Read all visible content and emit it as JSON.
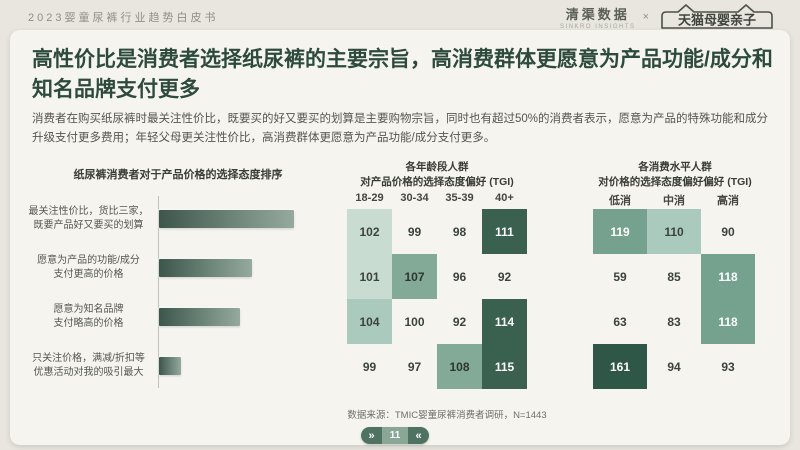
{
  "header": {
    "doc_title": "2023婴童尿裤行业趋势白皮书",
    "brand_left": "清渠数据",
    "brand_left_sub": "SINKRO INSIGHTS",
    "brand_sep": "×",
    "brand_right": "天猫母婴亲子"
  },
  "slide": {
    "title_line1": "高性价比是消费者选择纸尿裤的主要宗旨，高消费群体更愿意为产品功能/成分和",
    "title_line2": "知名品牌支付更多",
    "body": "消费者在购买纸尿裤时最关注性价比，既要买的好又要买的划算是主要购物宗旨，同时也有超过50%的消费者表示，愿意为产品的特殊功能和成分升级支付更多费用；年轻父母更关注性价比，高消费群体更愿意为产品功能/成分支付更多。",
    "source": "数据来源：TMIC婴童尿裤消费者调研，N=1443",
    "page_number": "11",
    "pager_left_icon": "»",
    "pager_right_icon": "«"
  },
  "colors": {
    "page_bg": "#e9e6df",
    "card_bg": "#f5f4ef",
    "accent_dark_green": "#2d4b3d",
    "bar_gradient_start": "#3d564c",
    "bar_gradient_end": "#95aa9d",
    "heat_levels": [
      "transparent",
      "#c9dcd2",
      "#a9cabc",
      "#82aa97",
      "#74a28e",
      "#3a614f",
      "#2e5747"
    ],
    "pager_cap_bg": "#4e7363",
    "pager_center_bg": "#8aa796"
  },
  "chart_data": [
    {
      "type": "bar",
      "orientation": "horizontal",
      "title": "纸尿裤消费者对于产品价格的选择态度排序",
      "categories": [
        [
          "最关注性价比，货比三家，",
          "既要产品好又要买的划算"
        ],
        [
          "愿意为产品的功能/成分",
          "支付更高的价格"
        ],
        [
          "愿意为知名品牌",
          "支付略高的价格"
        ],
        [
          "只关注价格，满减/折扣等",
          "优惠活动对我的吸引最大"
        ]
      ],
      "values_pct": [
        100,
        69,
        60,
        16
      ],
      "value_labels_shown": false,
      "note": "ranking chart, no numeric axis shown; values are relative bar lengths"
    },
    {
      "type": "heatmap",
      "title_lines": [
        "各年龄段人群",
        "对产品价格的选择态度偏好 (TGI)"
      ],
      "columns": [
        "18-29",
        "30-34",
        "35-39",
        "40+"
      ],
      "rows": [
        "最关注性价比，货比三家，既要产品好又要买的划算",
        "愿意为产品的功能/成分支付更高的价格",
        "愿意为知名品牌支付略高的价格",
        "只关注价格，满减/折扣等优惠活动对我的吸引最大"
      ],
      "values": [
        [
          102,
          99,
          98,
          111
        ],
        [
          101,
          107,
          96,
          92
        ],
        [
          104,
          100,
          92,
          114
        ],
        [
          99,
          97,
          108,
          115
        ]
      ],
      "levels": [
        [
          1,
          0,
          0,
          5
        ],
        [
          1,
          3,
          0,
          0
        ],
        [
          2,
          0,
          0,
          5
        ],
        [
          0,
          0,
          3,
          5
        ]
      ]
    },
    {
      "type": "heatmap",
      "title_lines": [
        "各消费水平人群",
        "对价格的选择态度偏好偏好 (TGI)"
      ],
      "columns": [
        "低消",
        "中消",
        "高消"
      ],
      "rows": [
        "最关注性价比，货比三家，既要产品好又要买的划算",
        "愿意为产品的功能/成分支付更高的价格",
        "愿意为知名品牌支付略高的价格",
        "只关注价格，满减/折扣等优惠活动对我的吸引最大"
      ],
      "values": [
        [
          119,
          110,
          90
        ],
        [
          59,
          85,
          118
        ],
        [
          63,
          83,
          118
        ],
        [
          161,
          94,
          93
        ]
      ],
      "levels": [
        [
          4,
          2,
          0
        ],
        [
          0,
          0,
          4
        ],
        [
          0,
          0,
          4
        ],
        [
          6,
          0,
          0
        ]
      ]
    }
  ]
}
